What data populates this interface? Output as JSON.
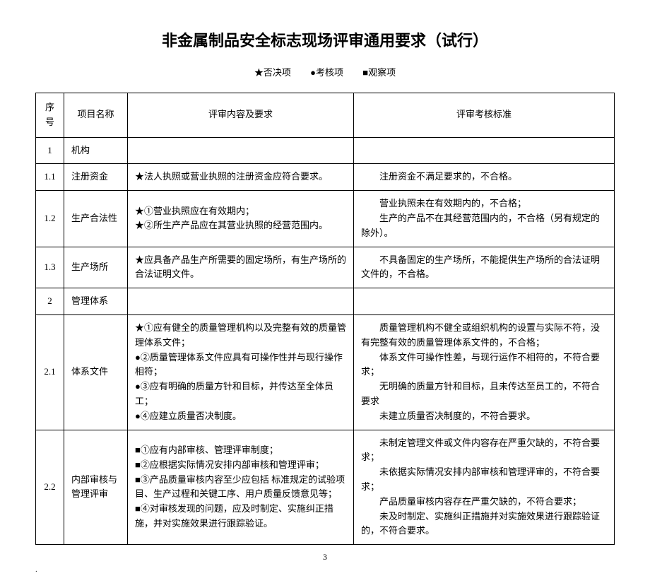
{
  "title": "非金属制品安全标志现场评审通用要求（试行）",
  "legend": {
    "veto": "★否决项",
    "check": "●考核项",
    "observe": "■观察项"
  },
  "headers": {
    "seq": "序号",
    "name": "项目名称",
    "content": "评审内容及要求",
    "criteria": "评审考核标准"
  },
  "rows": {
    "r1": {
      "seq": "1",
      "name": "机构"
    },
    "r1_1": {
      "seq": "1.1",
      "name": "注册资金",
      "content": "★法人执照或营业执照的注册资金应符合要求。",
      "criteria": "注册资金不满足要求的，不合格。"
    },
    "r1_2": {
      "seq": "1.2",
      "name": "生产合法性",
      "c1": "★①营业执照应在有效期内；",
      "c2": "★②所生产产品应在其营业执照的经营范围内。",
      "crit1": "营业执照未在有效期内的，不合格；",
      "crit2": "生产的产品不在其经营范围内的，不合格（另有规定的除外）。"
    },
    "r1_3": {
      "seq": "1.3",
      "name": "生产场所",
      "content": "★应具备产品生产所需要的固定场所，有生产场所的合法证明文件。",
      "criteria": "不具备固定的生产场所，不能提供生产场所的合法证明文件的，不合格。"
    },
    "r2": {
      "seq": "2",
      "name": "管理体系"
    },
    "r2_1": {
      "seq": "2.1",
      "name": "体系文件",
      "c1": "★①应有健全的质量管理机构以及完整有效的质量管理体系文件；",
      "c2": "●②质量管理体系文件应具有可操作性并与现行操作相符；",
      "c3": "●③应有明确的质量方针和目标，并传达至全体员工；",
      "c4": "●④应建立质量否决制度。",
      "crit1": "质量管理机构不健全或组织机构的设置与实际不符，没有完整有效的质量管理体系文件的，不合格；",
      "crit2": "体系文件可操作性差，与现行运作不相符的，不符合要求；",
      "crit3": "无明确的质量方针和目标，且未传达至员工的，不符合要求",
      "crit4": "未建立质量否决制度的，不符合要求。"
    },
    "r2_2": {
      "seq": "2.2",
      "name": "内部审核与管理评审",
      "c1": "■①应有内部审核、管理评审制度；",
      "c2": "■②应根据实际情况安排内部审核和管理评审；",
      "c3": "■③产品质量审核内容至少应包括 标准规定的试验项目、生产过程和关键工序、用户质量反馈意见等；",
      "c4": "■④对审核发现的问题，应及时制定、实施纠正措施，并对实施效果进行跟踪验证。",
      "crit1": "未制定管理文件或文件内容存在严重欠缺的，不符合要求；",
      "crit2": "未依据实际情况安排内部审核和管理评审的，不符合要求；",
      "crit3": "产品质量审核内容存在严重欠缺的，不符合要求；",
      "crit4": "未及时制定、实施纠正措施并对实施效果进行跟踪验证的，不符合要求。"
    }
  },
  "pageNum": "3",
  "footerMark": "."
}
